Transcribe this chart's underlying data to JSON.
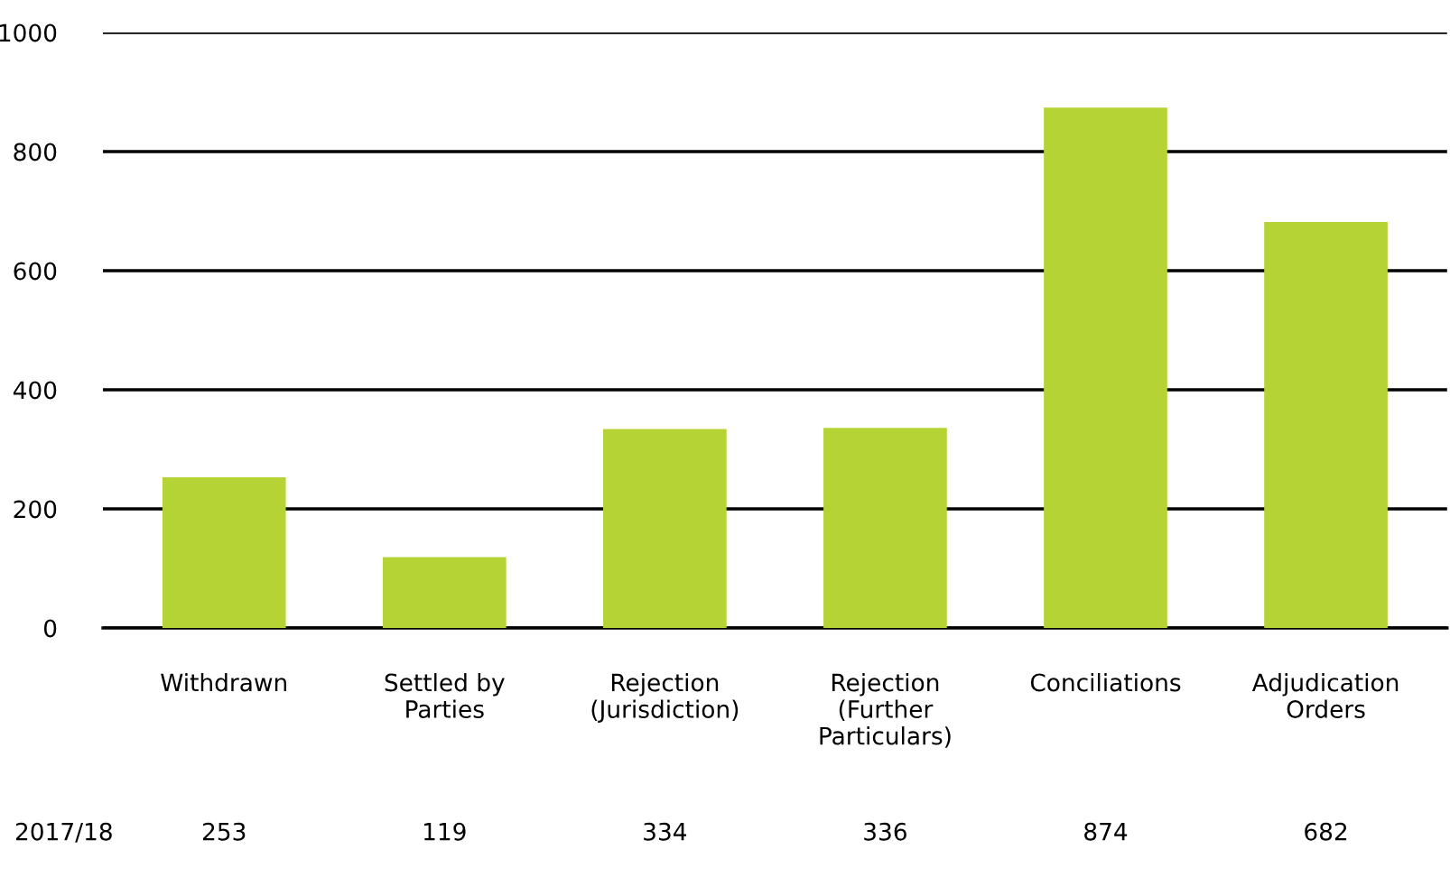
{
  "chart_data": {
    "type": "bar",
    "categories": [
      "Withdrawn",
      "Settled by\nParties",
      "Rejection\n(Jurisdiction)",
      "Rejection\n(Further\nParticulars)",
      "Conciliations",
      "Adjudication\nOrders"
    ],
    "series": [
      {
        "name": "2017/18",
        "color": "#b5d334",
        "values": [
          253,
          119,
          334,
          336,
          874,
          682
        ]
      }
    ],
    "ylim": [
      0,
      1000
    ],
    "yticks": [
      0,
      200,
      400,
      600,
      800,
      1000
    ],
    "grid": "y",
    "data_labels": true
  }
}
